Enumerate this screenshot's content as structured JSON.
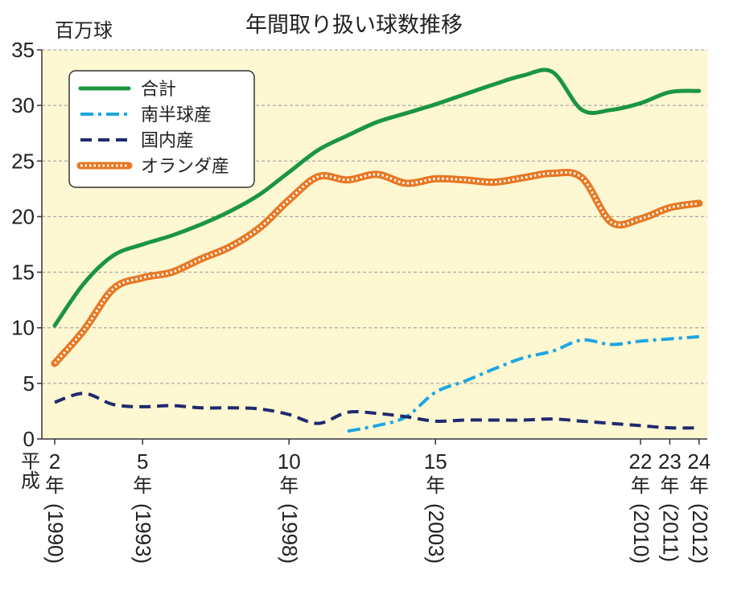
{
  "chart_data": {
    "type": "line",
    "title": "年間取り扱い球数推移",
    "ylabel": "百万球",
    "ylim": [
      0,
      35
    ],
    "yticks": [
      0,
      5,
      10,
      15,
      20,
      25,
      30,
      35
    ],
    "grid": true,
    "legend_position": "top-left",
    "era_label": "平成",
    "x_range": [
      1990,
      2012
    ],
    "x_ticks": [
      {
        "year": 1990,
        "era": "2",
        "suffix": "年",
        "western": "(1990)"
      },
      {
        "year": 1993,
        "era": "5",
        "suffix": "年",
        "western": "(1993)"
      },
      {
        "year": 1998,
        "era": "10",
        "suffix": "年",
        "western": "(1998)"
      },
      {
        "year": 2003,
        "era": "15",
        "suffix": "年",
        "western": "(2003)"
      },
      {
        "year": 2010,
        "era": "22",
        "suffix": "年",
        "western": "(2010)"
      },
      {
        "year": 2011,
        "era": "23",
        "suffix": "年",
        "western": "(2011)"
      },
      {
        "year": 2012,
        "era": "24",
        "suffix": "年",
        "western": "(2012)"
      }
    ],
    "series": [
      {
        "name": "合計",
        "color": "#1a9641",
        "style": "solid",
        "x": [
          1990,
          1991,
          1992,
          1993,
          1994,
          1995,
          1996,
          1997,
          1998,
          1999,
          2000,
          2001,
          2002,
          2003,
          2004,
          2005,
          2006,
          2007,
          2008,
          2009,
          2010,
          2011,
          2012
        ],
        "y": [
          10.2,
          14.0,
          16.5,
          17.5,
          18.3,
          19.3,
          20.5,
          22.0,
          24.0,
          26.0,
          27.3,
          28.5,
          29.3,
          30.1,
          31.0,
          31.9,
          32.7,
          33.0,
          29.6,
          29.6,
          30.2,
          31.2,
          31.3
        ]
      },
      {
        "name": "南半球産",
        "color": "#1ea6e0",
        "style": "dashdot",
        "x": [
          2000,
          2001,
          2002,
          2003,
          2004,
          2005,
          2006,
          2007,
          2008,
          2009,
          2010,
          2011,
          2012
        ],
        "y": [
          0.7,
          1.2,
          2.0,
          4.2,
          5.2,
          6.3,
          7.3,
          7.9,
          8.9,
          8.5,
          8.8,
          9.0,
          9.2
        ]
      },
      {
        "name": "国内産",
        "color": "#1e2a6e",
        "style": "dashed",
        "x": [
          1990,
          1991,
          1992,
          1993,
          1994,
          1995,
          1996,
          1997,
          1998,
          1999,
          2000,
          2001,
          2002,
          2003,
          2004,
          2005,
          2006,
          2007,
          2008,
          2009,
          2010,
          2011,
          2012
        ],
        "y": [
          3.3,
          4.1,
          3.1,
          2.9,
          3.0,
          2.8,
          2.8,
          2.7,
          2.2,
          1.4,
          2.4,
          2.3,
          2.0,
          1.6,
          1.7,
          1.7,
          1.7,
          1.8,
          1.6,
          1.4,
          1.2,
          1.0,
          1.0
        ]
      },
      {
        "name": "オランダ産",
        "color": "#e87722",
        "style": "dotted-double",
        "x": [
          1990,
          1991,
          1992,
          1993,
          1994,
          1995,
          1996,
          1997,
          1998,
          1999,
          2000,
          2001,
          2002,
          2003,
          2004,
          2005,
          2006,
          2007,
          2008,
          2009,
          2010,
          2011,
          2012
        ],
        "y": [
          6.8,
          9.8,
          13.5,
          14.5,
          15.0,
          16.2,
          17.3,
          19.0,
          21.5,
          23.6,
          23.3,
          23.8,
          23.0,
          23.4,
          23.3,
          23.1,
          23.5,
          23.9,
          23.5,
          19.5,
          19.8,
          20.8,
          21.2
        ]
      }
    ]
  }
}
